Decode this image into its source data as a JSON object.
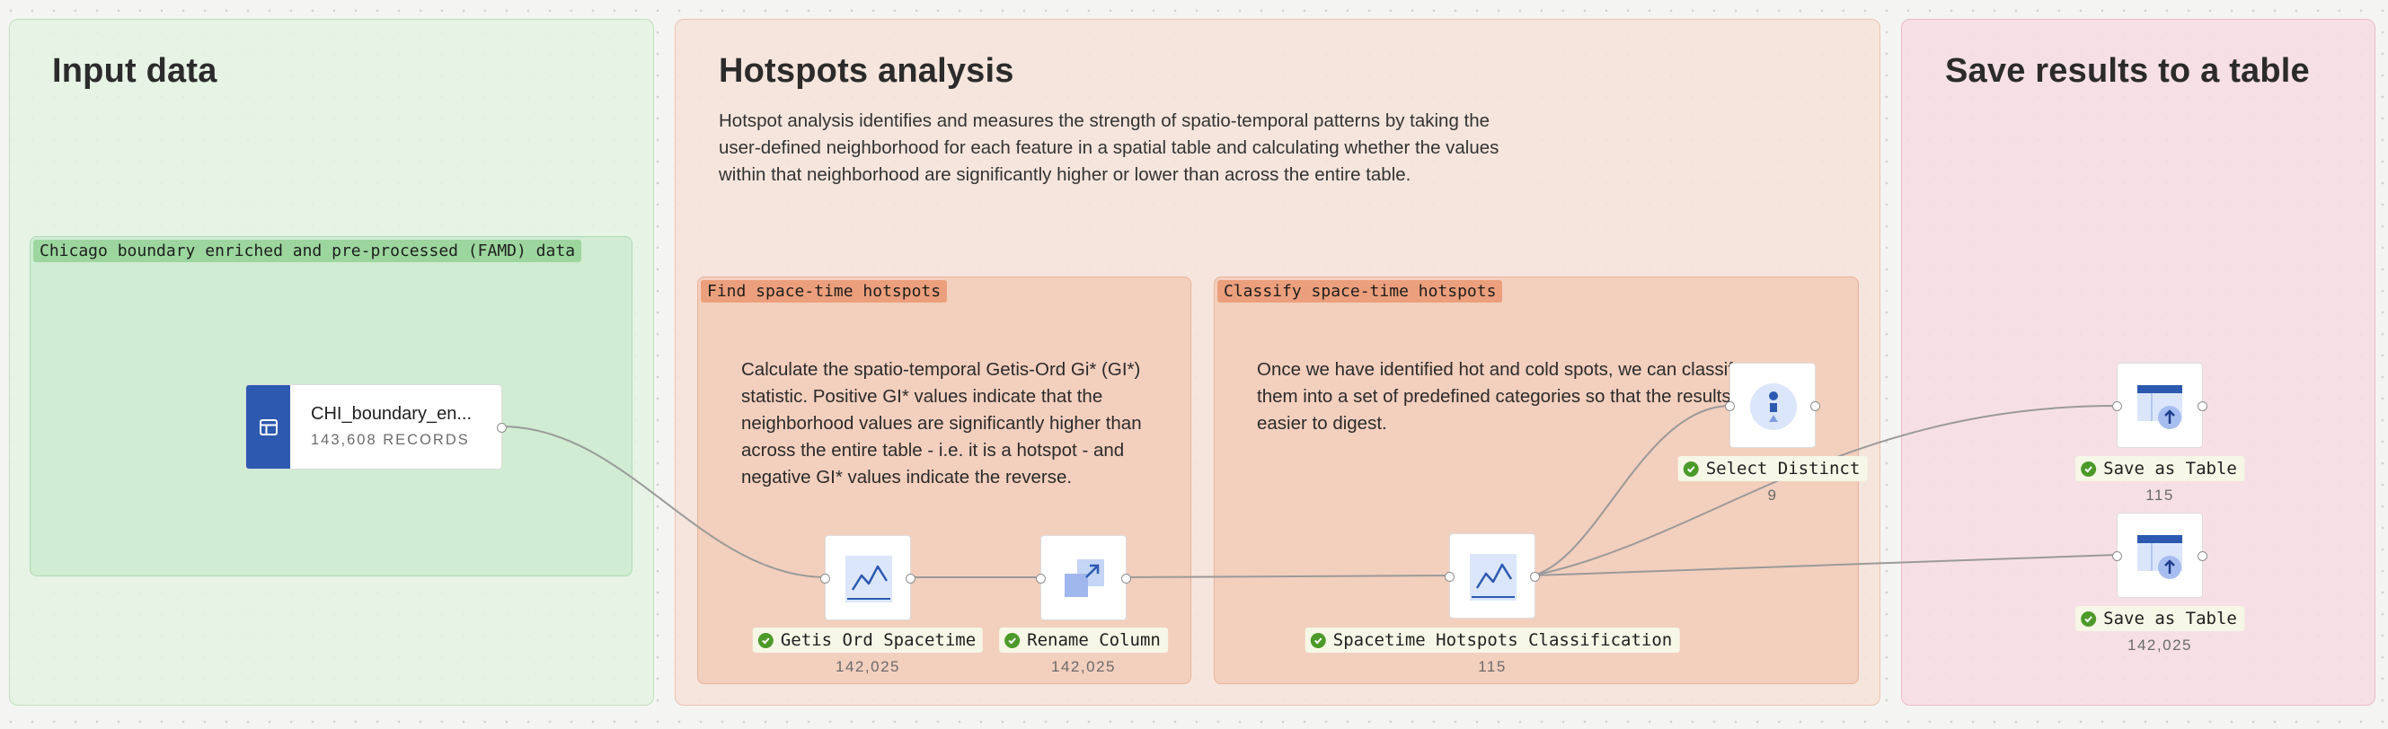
{
  "regions": {
    "input": {
      "title": "Input data"
    },
    "hotspots": {
      "title": "Hotspots analysis",
      "description": "Hotspot analysis identifies and measures the strength of spatio-temporal patterns by taking the user-defined neighborhood for each feature in a spatial table and calculating whether the values within that neighborhood are significantly higher or lower than across the entire table."
    },
    "save": {
      "title": "Save results to a table"
    }
  },
  "groups": {
    "chicago": {
      "tag": "Chicago boundary enriched and pre-processed (FAMD) data"
    },
    "find": {
      "tag": "Find space-time hotspots",
      "description": "Calculate the spatio-temporal Getis-Ord Gi* (GI*) statistic. Positive GI* values indicate that the neighborhood values are significantly higher than across the entire table - i.e. it is a hotspot - and negative GI* values indicate the reverse."
    },
    "classify": {
      "tag": "Classify space-time hotspots",
      "description": "Once we have identified hot and cold spots, we can classify them into a set of predefined categories so that the results are easier to digest."
    }
  },
  "nodes": {
    "source": {
      "name": "CHI_boundary_en...",
      "records": "143,608 RECORDS",
      "icon": "table-icon"
    },
    "getis": {
      "label": "Getis Ord Spacetime",
      "count": "142,025",
      "icon": "line-chart-icon"
    },
    "rename": {
      "label": "Rename Column",
      "count": "142,025",
      "icon": "transform-icon"
    },
    "classification": {
      "label": "Spacetime Hotspots Classification",
      "count": "115",
      "icon": "line-chart-icon"
    },
    "distinct": {
      "label": "Select Distinct",
      "count": "9",
      "icon": "distinct-icon"
    },
    "save1": {
      "label": "Save as Table",
      "count": "115",
      "icon": "save-table-icon"
    },
    "save2": {
      "label": "Save as Table",
      "count": "142,025",
      "icon": "save-table-icon"
    }
  },
  "colors": {
    "input_region": "#e4f2e3",
    "hotspots_region": "#f5e2d9",
    "save_region": "#f6dde3",
    "node_blue": "#2d5ab0",
    "status_ok": "#4c9a2a"
  }
}
